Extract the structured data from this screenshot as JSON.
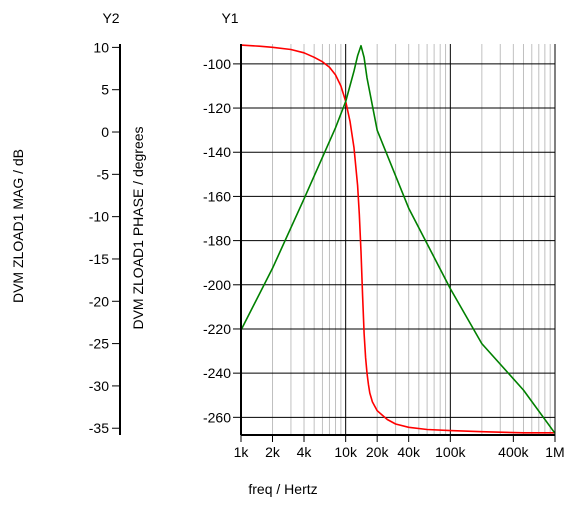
{
  "chart_data": {
    "type": "line",
    "xscale": "log",
    "xlabel": "freq / Hertz",
    "xlim": [
      1000,
      1000000
    ],
    "x_ticks": [
      {
        "value": 1000,
        "label": "1k"
      },
      {
        "value": 2000,
        "label": "2k"
      },
      {
        "value": 4000,
        "label": "4k"
      },
      {
        "value": 10000,
        "label": "10k"
      },
      {
        "value": 20000,
        "label": "20k"
      },
      {
        "value": 40000,
        "label": "40k"
      },
      {
        "value": 100000,
        "label": "100k"
      },
      {
        "value": 400000,
        "label": "400k"
      },
      {
        "value": 1000000,
        "label": "1M"
      }
    ],
    "y1": {
      "header": "Y1",
      "label": "DVM ZLOAD1 PHASE / degrees",
      "ylim": [
        -268,
        -91
      ],
      "ticks": [
        -100,
        -120,
        -140,
        -160,
        -180,
        -200,
        -220,
        -240,
        -260
      ],
      "tick_labels": [
        "-100",
        "-120",
        "-140",
        "-160",
        "-180",
        "-200",
        "-220",
        "-240",
        "-260"
      ]
    },
    "y2": {
      "header": "Y2",
      "label": "DVM ZLOAD1 MAG / dB",
      "ylim": [
        -35.8,
        10.4
      ],
      "ticks": [
        10,
        5,
        0,
        -5,
        -10,
        -15,
        -20,
        -25,
        -30,
        -35
      ],
      "tick_labels": [
        "10",
        "5",
        "0",
        "-5",
        "-10",
        "-15",
        "-20",
        "-25",
        "-30",
        "-35"
      ]
    },
    "series": [
      {
        "axis": "y1",
        "color": "#ff0000",
        "x": [
          1000,
          1500,
          2000,
          3000,
          4000,
          5000,
          6000,
          7000,
          8000,
          9000,
          10000,
          11000,
          12000,
          13000,
          13500,
          14000,
          14500,
          15000,
          15500,
          16000,
          16500,
          17000,
          18000,
          20000,
          25000,
          30000,
          40000,
          60000,
          100000,
          200000,
          500000,
          1000000
        ],
        "y": [
          -91.5,
          -92,
          -92.5,
          -93.5,
          -95,
          -97,
          -99,
          -101.5,
          -105,
          -110,
          -117,
          -126,
          -138,
          -155,
          -168,
          -185,
          -205,
          -222,
          -233,
          -240,
          -245,
          -249,
          -253,
          -257,
          -261,
          -263,
          -264.5,
          -265.5,
          -266,
          -266.5,
          -267,
          -267
        ]
      },
      {
        "axis": "y2",
        "color": "#008000",
        "x": [
          1000,
          2000,
          4000,
          8000,
          10000,
          12000,
          13000,
          14000,
          15000,
          16000,
          20000,
          40000,
          100000,
          200000,
          500000,
          1000000
        ],
        "y": [
          -23.4,
          -16.1,
          -7.9,
          0.5,
          3.6,
          7.2,
          9.0,
          10.2,
          8.8,
          6.4,
          0.2,
          -9.0,
          -18.5,
          -25.0,
          -30.5,
          -35.6
        ]
      }
    ]
  }
}
